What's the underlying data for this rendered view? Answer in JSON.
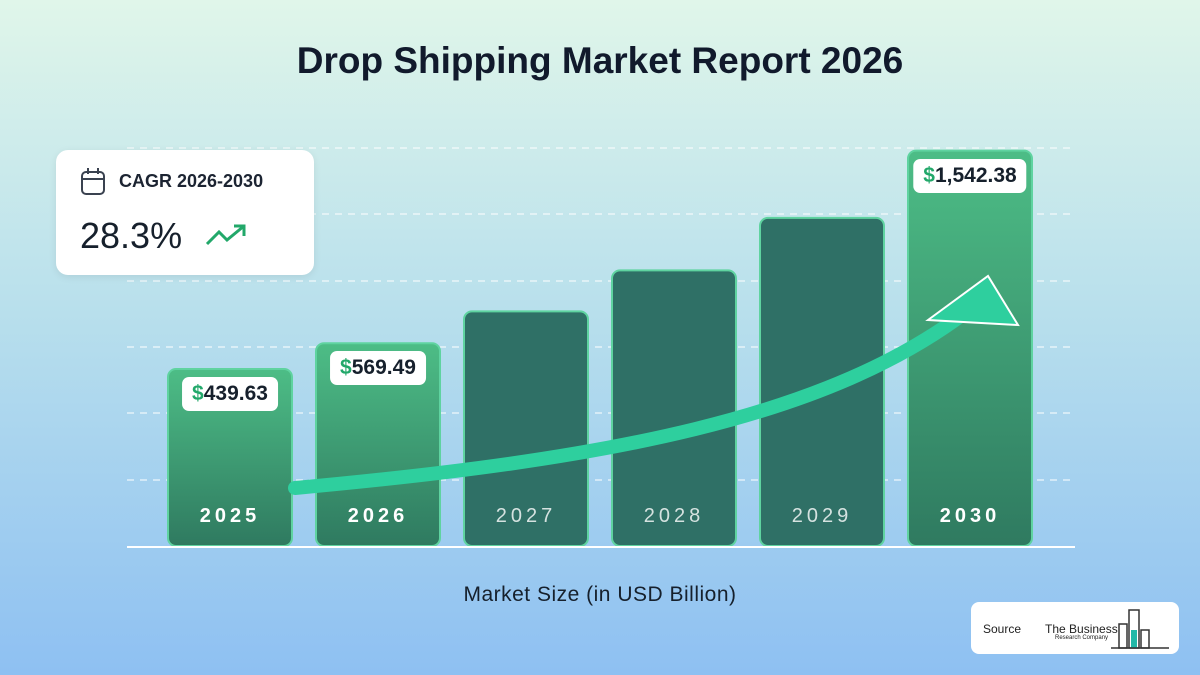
{
  "chart_data": {
    "type": "bar",
    "title": "Drop Shipping Market Report 2026",
    "xlabel": "Market Size (in USD Billion)",
    "categories": [
      "2025",
      "2026",
      "2027",
      "2028",
      "2029",
      "2030"
    ],
    "values": [
      439.63,
      569.49,
      730.7,
      937.5,
      1202.8,
      1542.38
    ],
    "value_labels": [
      "$439.63",
      "$569.49",
      null,
      null,
      null,
      "$1,542.38"
    ],
    "color": "#2f7066",
    "highlight_color": "#45b47f",
    "cagr_label": "CAGR 2026-2030",
    "cagr_value": "28.3%"
  },
  "source": {
    "label": "Source",
    "company": "The Business",
    "company_sub": "Research Company"
  }
}
